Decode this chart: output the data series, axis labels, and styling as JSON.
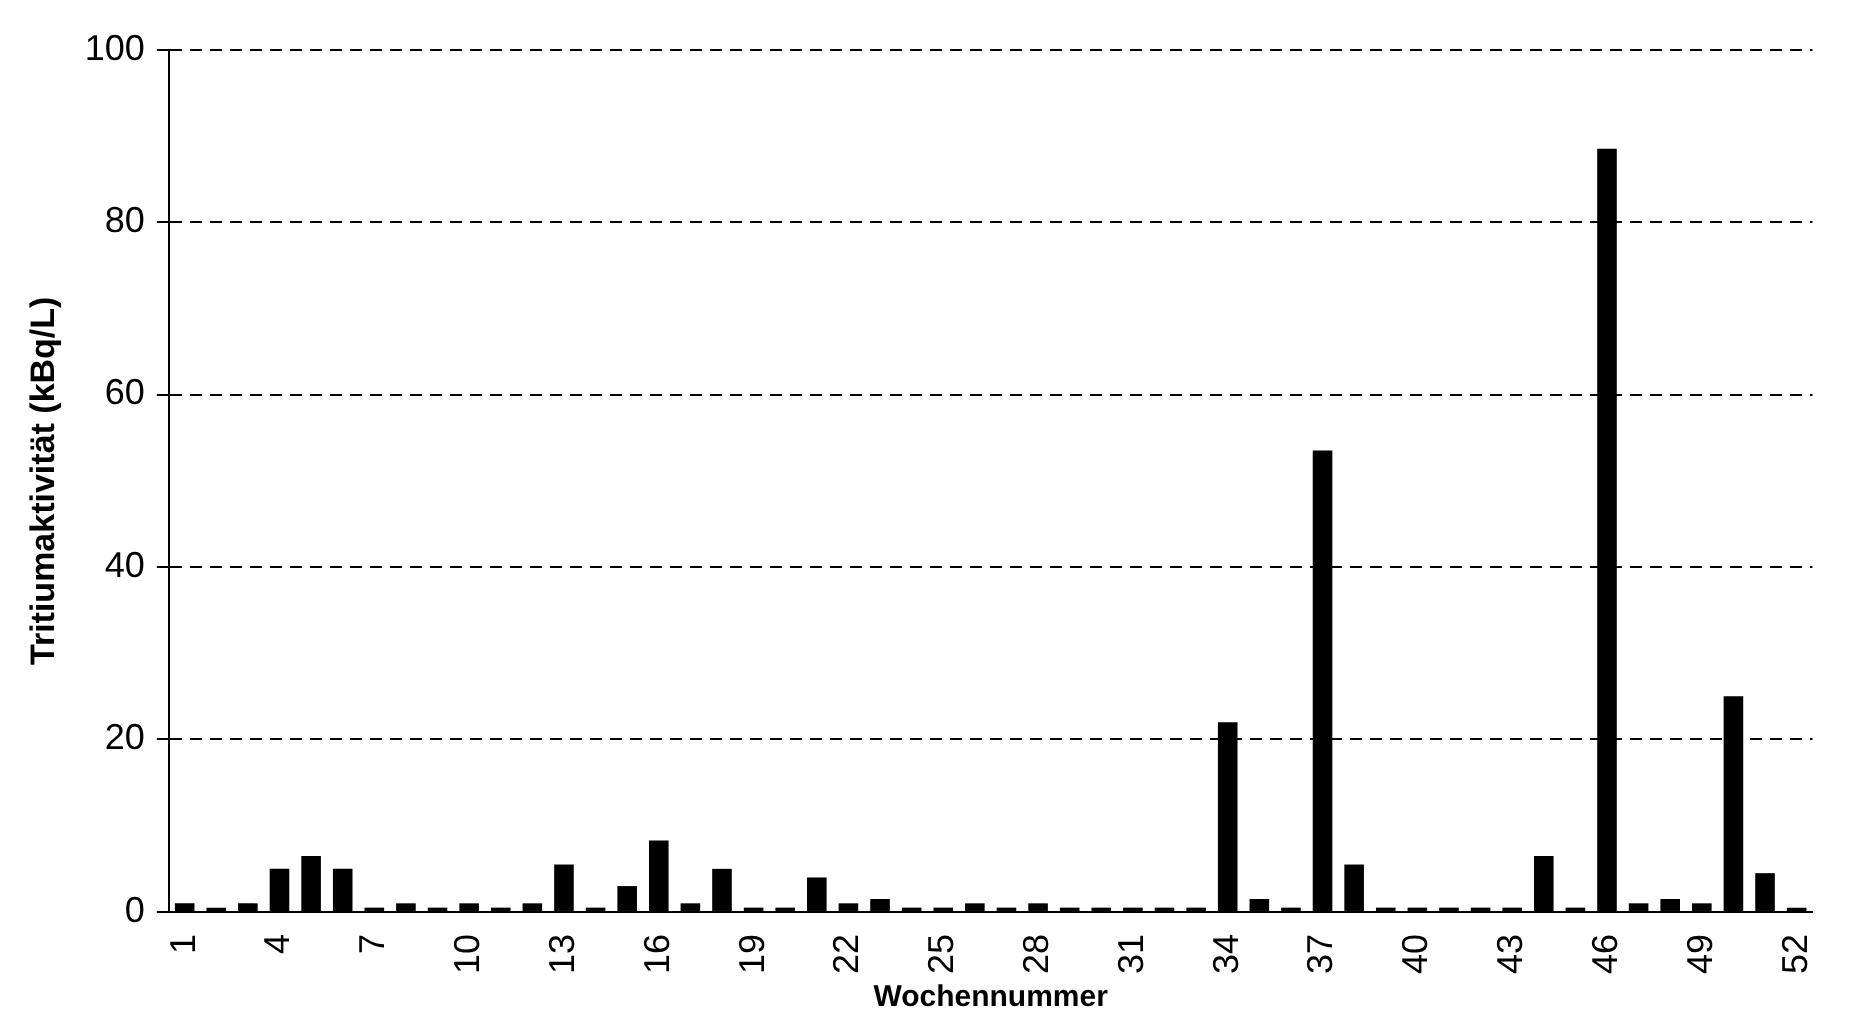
{
  "chart_data": {
    "type": "bar",
    "xlabel": "Wochennummer",
    "ylabel": "Tritiumaktivität (kBq/L)",
    "categories": [
      "1",
      null,
      null,
      "4",
      null,
      null,
      "7",
      null,
      null,
      "10",
      null,
      null,
      "13",
      null,
      null,
      "16",
      null,
      null,
      "19",
      null,
      null,
      "22",
      null,
      null,
      "25",
      null,
      null,
      "28",
      null,
      null,
      "31",
      null,
      null,
      "34",
      null,
      null,
      "37",
      null,
      null,
      "40",
      null,
      null,
      "43",
      null,
      null,
      "46",
      null,
      null,
      "49",
      null,
      null,
      "52"
    ],
    "values": [
      1,
      0.5,
      1,
      5,
      6.5,
      5,
      0.5,
      1,
      0.5,
      1,
      0.5,
      1,
      5.5,
      0.5,
      3,
      8.3,
      1,
      5,
      0.5,
      0.5,
      4,
      1,
      1.5,
      0.5,
      0.5,
      1,
      0.5,
      1,
      0.5,
      0.5,
      0.5,
      0.5,
      0.5,
      22,
      1.5,
      0.5,
      53.5,
      5.5,
      0.5,
      0.5,
      0.5,
      0.5,
      0.5,
      6.5,
      0.5,
      88.5,
      1,
      1.5,
      1,
      25,
      4.5,
      0.5
    ],
    "color": "#000000",
    "ylim": [
      0,
      100
    ],
    "yticks": [
      0,
      20,
      40,
      60,
      80,
      100
    ],
    "grid": "y"
  }
}
